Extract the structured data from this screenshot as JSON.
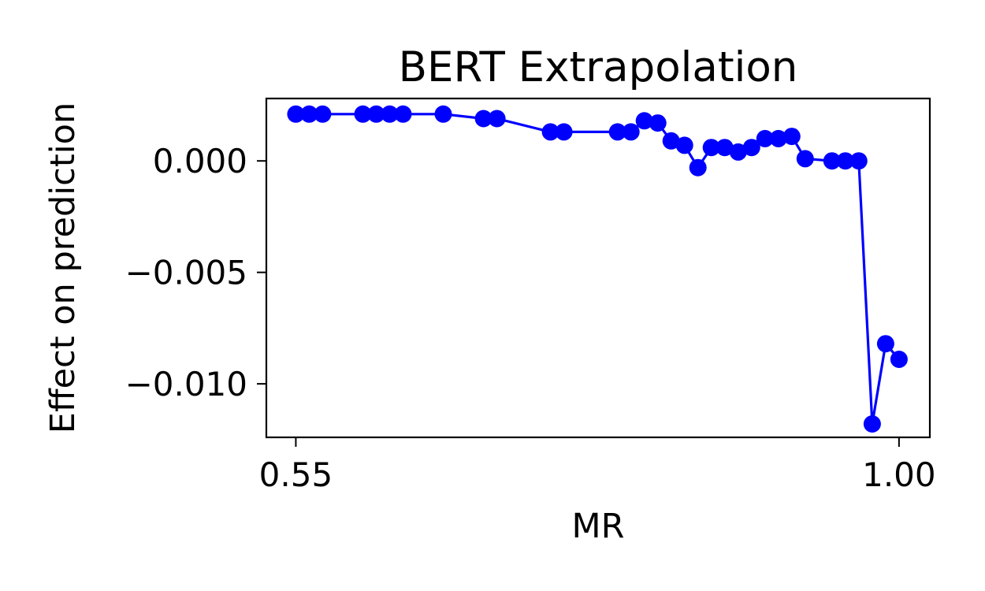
{
  "chart_data": {
    "type": "line",
    "title": "BERT Extrapolation",
    "xlabel": "MR",
    "ylabel": "Effect on prediction",
    "xlim": [
      0.528,
      1.023
    ],
    "ylim": [
      -0.0124,
      0.0028
    ],
    "xticks": [
      {
        "value": 0.55,
        "label": "0.55"
      },
      {
        "value": 1.0,
        "label": "1.00"
      }
    ],
    "yticks": [
      {
        "value": 0.0,
        "label": "0.000"
      },
      {
        "value": -0.005,
        "label": "−0.005"
      },
      {
        "value": -0.01,
        "label": "−0.010"
      }
    ],
    "grid": false,
    "series": [
      {
        "name": "BERT",
        "color": "#0000ff",
        "marker": "circle",
        "x": [
          0.55,
          0.56,
          0.57,
          0.6,
          0.61,
          0.62,
          0.63,
          0.66,
          0.69,
          0.7,
          0.74,
          0.75,
          0.79,
          0.8,
          0.81,
          0.82,
          0.83,
          0.84,
          0.85,
          0.86,
          0.87,
          0.88,
          0.89,
          0.9,
          0.91,
          0.92,
          0.93,
          0.95,
          0.96,
          0.97,
          0.98,
          0.99,
          1.0
        ],
        "y": [
          0.0021,
          0.0021,
          0.0021,
          0.0021,
          0.0021,
          0.0021,
          0.0021,
          0.0021,
          0.0019,
          0.0019,
          0.0013,
          0.0013,
          0.0013,
          0.0013,
          0.0018,
          0.0017,
          0.0009,
          0.0007,
          -0.0003,
          0.0006,
          0.0006,
          0.0004,
          0.0006,
          0.001,
          0.001,
          0.0011,
          0.0001,
          0.0,
          0.0,
          0.0,
          -0.0118,
          -0.0082,
          -0.0089
        ]
      }
    ]
  }
}
